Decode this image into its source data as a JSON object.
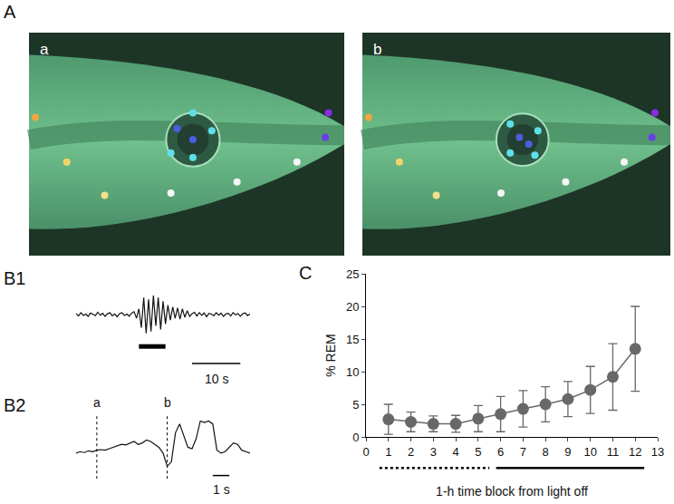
{
  "panels": {
    "A": {
      "label": "A",
      "images": [
        {
          "label": "a"
        },
        {
          "label": "b"
        }
      ]
    }
  },
  "chart_data": [
    {
      "panel": "B1",
      "type": "line",
      "color": "#111111",
      "tick_labels": false,
      "x": [
        0,
        0.5,
        1,
        1.5,
        2,
        2.5,
        3,
        3.5,
        4,
        4.5,
        5,
        5.5,
        6,
        6.5,
        7,
        7.5,
        8,
        8.5,
        9,
        9.5,
        10,
        10.5,
        11,
        11.5,
        12,
        12.5,
        13,
        13.5,
        14,
        14.5,
        15,
        15.5,
        16,
        16.5,
        17,
        17.5,
        18,
        18.5,
        19,
        19.5,
        20,
        20.5,
        21,
        21.5,
        22,
        22.5,
        23,
        23.5,
        24,
        24.5,
        25,
        25.5,
        26,
        26.5,
        27,
        27.5,
        28,
        28.5,
        29,
        29.5,
        30,
        30.5,
        31,
        31.5,
        32,
        32.5,
        33,
        33.5,
        34,
        34.5,
        35,
        35.5,
        36
      ],
      "values": [
        0.05,
        -0.08,
        0.1,
        -0.05,
        0.02,
        -0.1,
        0.08,
        0,
        -0.06,
        0.12,
        -0.04,
        0.06,
        -0.1,
        0.04,
        0.09,
        -0.07,
        0.03,
        -0.12,
        0.05,
        0.1,
        -0.05,
        0.02,
        -0.09,
        0.07,
        0.15,
        -0.2,
        0.3,
        -0.7,
        0.9,
        -1.0,
        0.8,
        -0.9,
        1.0,
        -0.6,
        0.9,
        -0.8,
        0.7,
        -0.5,
        0.5,
        -0.3,
        0.4,
        -0.2,
        0.35,
        -0.25,
        0.3,
        -0.15,
        0.2,
        -0.1,
        0.05,
        0.12,
        -0.08,
        0.1,
        -0.05,
        0.08,
        -0.12,
        0.06,
        0.02,
        -0.07,
        0.1,
        -0.04,
        0.07,
        -0.1,
        0.03,
        0.06,
        -0.08,
        0.1,
        -0.02,
        0.05,
        -0.09,
        0.04,
        0.08,
        -0.06,
        0.03
      ],
      "xlim": [
        0,
        36
      ],
      "ylim": [
        -1.2,
        1.2
      ],
      "event_bar": {
        "from": 13,
        "to": 18.5
      },
      "scale_bar": {
        "x": 24,
        "length": 10,
        "label": "10 s"
      }
    },
    {
      "panel": "B2",
      "type": "line",
      "color": "#111111",
      "tick_labels": false,
      "x": [
        0,
        0.25,
        0.5,
        0.75,
        1,
        1.25,
        1.5,
        1.75,
        2,
        2.25,
        2.5,
        2.75,
        3,
        3.25,
        3.5,
        3.75,
        4,
        4.25,
        4.5,
        4.75,
        5,
        5.25,
        5.5,
        5.75,
        6,
        6.25,
        6.5,
        6.75,
        7,
        7.25,
        7.5,
        7.75,
        8,
        8.25,
        8.5,
        8.75,
        9,
        9.25,
        9.5,
        9.75,
        10,
        10.25,
        10.5
      ],
      "values": [
        0,
        0.05,
        0.02,
        0.08,
        0.05,
        0.1,
        0.12,
        0.1,
        0.15,
        0.2,
        0.25,
        0.3,
        0.28,
        0.35,
        0.4,
        0.3,
        0.35,
        0.45,
        0.4,
        0.3,
        0.2,
        0.0,
        -0.45,
        -0.3,
        0.7,
        1.0,
        0.6,
        0.2,
        0.15,
        0.5,
        1.1,
        1.05,
        1.1,
        1.0,
        0.1,
        0.0,
        0.05,
        0.2,
        0.35,
        0.3,
        0.1,
        0.05,
        0.0
      ],
      "xlim": [
        0,
        10.5
      ],
      "ylim": [
        -0.6,
        1.3
      ],
      "markers": [
        {
          "x": 1.25,
          "label": "a"
        },
        {
          "x": 5.5,
          "label": "b"
        }
      ],
      "scale_bar": {
        "x": 8.25,
        "length": 1,
        "label": "1 s"
      }
    },
    {
      "panel": "C",
      "type": "scatter",
      "color": "#686868",
      "marker": "circle",
      "line_style": "solid",
      "grid": false,
      "x": [
        1,
        2,
        3,
        4,
        5,
        6,
        7,
        8,
        9,
        10,
        11,
        12
      ],
      "values": [
        2.7,
        2.3,
        2.0,
        2.0,
        2.8,
        3.5,
        4.3,
        5.0,
        5.8,
        7.2,
        9.2,
        13.5
      ],
      "error": [
        2.3,
        1.5,
        1.2,
        1.3,
        2.0,
        2.7,
        2.8,
        2.7,
        2.7,
        3.6,
        5.1,
        6.5
      ],
      "xlim": [
        0,
        13
      ],
      "xticks": [
        0,
        1,
        2,
        3,
        4,
        5,
        6,
        7,
        8,
        9,
        10,
        11,
        12,
        13
      ],
      "ylim": [
        0,
        25
      ],
      "yticks": [
        0,
        5,
        10,
        15,
        20,
        25
      ],
      "xlabel": "1-h time block from light off",
      "ylabel": "% REM",
      "light_bars": [
        {
          "from": 0.6,
          "to": 5.5,
          "line_style": "dotted"
        },
        {
          "from": 5.8,
          "to": 12.4,
          "line_style": "solid"
        }
      ]
    }
  ]
}
